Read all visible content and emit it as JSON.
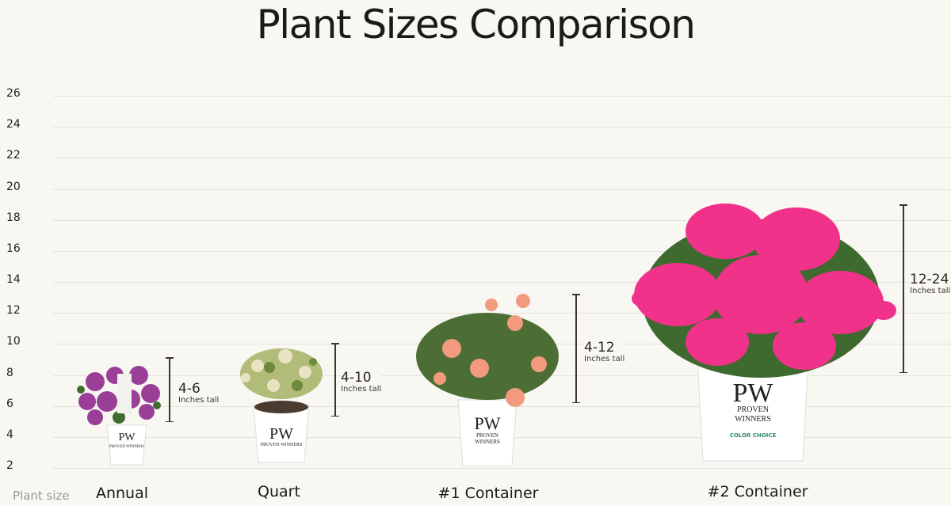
{
  "title": "Plant Sizes Comparison",
  "chart_data": {
    "type": "bar",
    "title": "Plant Sizes Comparison",
    "xlabel": "Plant size",
    "ylabel": "",
    "yticks": [
      2,
      4,
      6,
      8,
      10,
      12,
      14,
      16,
      18,
      20,
      22,
      24,
      26
    ],
    "ylim": [
      2,
      26
    ],
    "grid": true,
    "categories": [
      "Annual",
      "Quart",
      "#1 Container",
      "#2 Container"
    ],
    "ranges": [
      [
        4,
        6
      ],
      [
        4,
        10
      ],
      [
        4,
        12
      ],
      [
        12,
        24
      ]
    ],
    "range_labels": [
      "4-6",
      "4-10",
      "4-12",
      "12-24"
    ],
    "unit_label": "Inches tall"
  },
  "colors": {
    "background": "#f8f7f2",
    "grid": "#e4e2dc",
    "range_bar": "#3b3630"
  },
  "pot_brand": {
    "logo": "PW",
    "line1": "PROVEN",
    "line2": "WINNERS",
    "sub": "COLOR CHOICE"
  }
}
